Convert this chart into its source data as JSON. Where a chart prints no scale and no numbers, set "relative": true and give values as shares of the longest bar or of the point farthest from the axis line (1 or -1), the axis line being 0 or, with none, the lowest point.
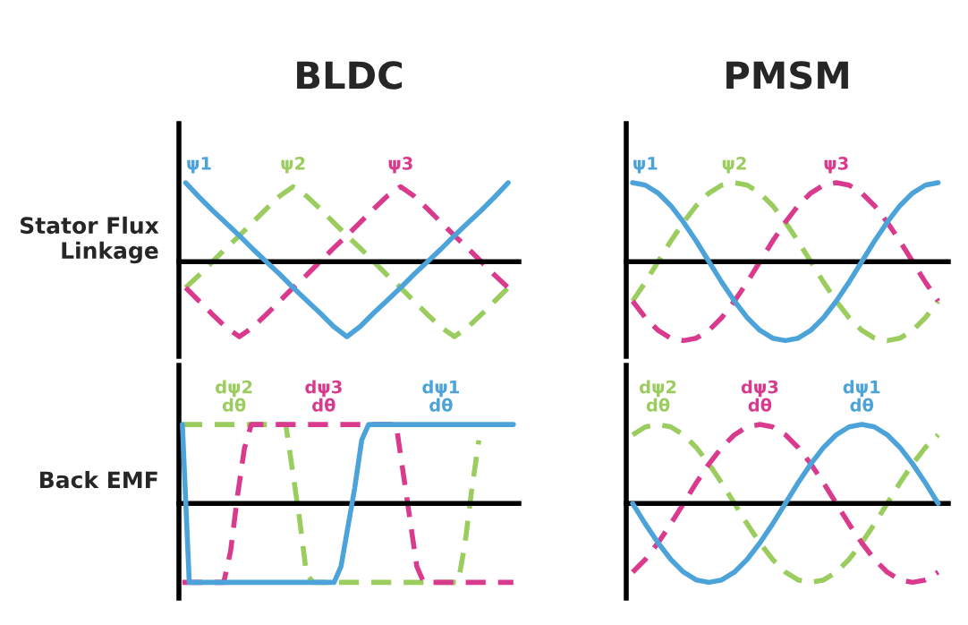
{
  "chart_data": [
    {
      "type": "line",
      "title": "BLDC",
      "ylabel": "Stator Flux\nLinkage",
      "relative": true,
      "categories": [
        null,
        null,
        null,
        null,
        null,
        null,
        null,
        null,
        null,
        null,
        null,
        null,
        null,
        null,
        null,
        null,
        null,
        null,
        null,
        null,
        null,
        null,
        null,
        null,
        null
      ],
      "series": [
        {
          "name": "ψ1",
          "color": "#4ba3d9",
          "line_style": "solid",
          "values": [
            1,
            0.82,
            0.65,
            0.49,
            0.33,
            0.16,
            0,
            -0.16,
            -0.33,
            -0.49,
            -0.65,
            -0.82,
            -0.95,
            -0.82,
            -0.65,
            -0.49,
            -0.33,
            -0.16,
            0,
            0.16,
            0.33,
            0.49,
            0.65,
            0.82,
            1
          ]
        },
        {
          "name": "ψ2",
          "color": "#9acd5e",
          "line_style": "dashed",
          "values": [
            -0.33,
            -0.17,
            0,
            0.17,
            0.33,
            0.5,
            0.67,
            0.83,
            0.95,
            0.83,
            0.67,
            0.5,
            0.33,
            0.17,
            0,
            -0.17,
            -0.33,
            -0.5,
            -0.67,
            -0.83,
            -0.95,
            -0.83,
            -0.67,
            -0.5,
            -0.33
          ]
        },
        {
          "name": "ψ3",
          "color": "#d93a8e",
          "line_style": "dashed",
          "values": [
            -0.33,
            -0.5,
            -0.67,
            -0.83,
            -0.95,
            -0.83,
            -0.67,
            -0.5,
            -0.33,
            -0.17,
            0,
            0.17,
            0.33,
            0.5,
            0.67,
            0.83,
            0.95,
            0.83,
            0.67,
            0.5,
            0.33,
            0.17,
            0,
            -0.17,
            -0.33
          ]
        }
      ]
    },
    {
      "type": "line",
      "title": "PMSM",
      "relative": true,
      "categories": [
        null,
        null,
        null,
        null,
        null,
        null,
        null,
        null,
        null,
        null,
        null,
        null,
        null,
        null,
        null,
        null,
        null,
        null,
        null,
        null,
        null,
        null,
        null,
        null,
        null
      ],
      "series": [
        {
          "name": "ψ1",
          "color": "#4ba3d9",
          "line_style": "solid",
          "values": [
            1,
            0.97,
            0.87,
            0.71,
            0.5,
            0.26,
            0,
            -0.26,
            -0.5,
            -0.71,
            -0.87,
            -0.97,
            -1,
            -0.97,
            -0.87,
            -0.71,
            -0.5,
            -0.26,
            0,
            0.26,
            0.5,
            0.71,
            0.87,
            0.97,
            1
          ]
        },
        {
          "name": "ψ2",
          "color": "#9acd5e",
          "line_style": "dashed",
          "values": [
            -0.5,
            -0.26,
            0,
            0.26,
            0.5,
            0.71,
            0.87,
            0.97,
            1,
            0.97,
            0.87,
            0.71,
            0.5,
            0.26,
            0,
            -0.26,
            -0.5,
            -0.71,
            -0.87,
            -0.97,
            -1,
            -0.97,
            -0.87,
            -0.71,
            -0.5
          ]
        },
        {
          "name": "ψ3",
          "color": "#d93a8e",
          "line_style": "dashed",
          "values": [
            -0.5,
            -0.71,
            -0.87,
            -0.97,
            -1,
            -0.97,
            -0.87,
            -0.71,
            -0.5,
            -0.26,
            0,
            0.26,
            0.5,
            0.71,
            0.87,
            0.97,
            1,
            0.97,
            0.87,
            0.71,
            0.5,
            0.26,
            0,
            -0.26,
            -0.5
          ]
        }
      ]
    },
    {
      "type": "line",
      "ylabel": "Back EMF",
      "relative": true,
      "categories": [
        null,
        null,
        null,
        null,
        null,
        null,
        null,
        null,
        null,
        null,
        null,
        null,
        null,
        null,
        null,
        null,
        null,
        null,
        null,
        null,
        null,
        null,
        null,
        null,
        null,
        null,
        null,
        null,
        null,
        null,
        null,
        null,
        null,
        null,
        null,
        null,
        null,
        null,
        null,
        null,
        null,
        null,
        null,
        null,
        null,
        null,
        null,
        null,
        null
      ],
      "series": [
        {
          "name": "dψ1\ndθ",
          "color": "#4ba3d9",
          "line_style": "solid",
          "values": [
            1,
            -1,
            -1,
            -1,
            -1,
            -1,
            -1,
            -1,
            -1,
            -1,
            -1,
            -1,
            -1,
            -1,
            -1,
            -1,
            -1,
            -1,
            -1,
            -1,
            -1,
            -1,
            -1,
            -0.8,
            -0.3,
            0.2,
            0.8,
            1,
            1,
            1,
            1,
            1,
            1,
            1,
            1,
            1,
            1,
            1,
            1,
            1,
            1,
            1,
            1,
            1,
            1,
            1,
            1,
            1,
            1
          ]
        },
        {
          "name": "dψ2\ndθ",
          "color": "#9acd5e",
          "line_style": "dashed",
          "values": [
            1,
            1,
            1,
            1,
            1,
            1,
            1,
            1,
            1,
            1,
            1,
            1,
            1,
            1,
            1,
            1,
            0.4,
            -0.2,
            -0.9,
            -1,
            -1,
            -1,
            -1,
            -1,
            -1,
            -1,
            -1,
            -1,
            -1,
            -1,
            -1,
            -1,
            -1,
            -1,
            -1,
            -1,
            -1,
            -1,
            -1,
            -1,
            -1,
            -0.5,
            0.2,
            0.8,
            null,
            null,
            null,
            null,
            null
          ]
        },
        {
          "name": "dψ3\ndθ",
          "color": "#d93a8e",
          "line_style": "dashed",
          "values": [
            -1,
            -1,
            -1,
            -1,
            -1,
            -1,
            -1,
            -0.6,
            0.1,
            0.7,
            1,
            1,
            1,
            1,
            1,
            1,
            1,
            1,
            1,
            1,
            1,
            1,
            1,
            1,
            1,
            1,
            1,
            1,
            1,
            1,
            1,
            1,
            0.4,
            -0.2,
            -0.8,
            -1,
            -1,
            -1,
            -1,
            -1,
            -1,
            -1,
            -1,
            -1,
            -1,
            -1,
            -1,
            -1,
            -1
          ]
        }
      ]
    },
    {
      "type": "line",
      "relative": true,
      "categories": [
        null,
        null,
        null,
        null,
        null,
        null,
        null,
        null,
        null,
        null,
        null,
        null,
        null,
        null,
        null,
        null,
        null,
        null,
        null,
        null,
        null,
        null,
        null,
        null,
        null
      ],
      "series": [
        {
          "name": "dψ1\ndθ",
          "color": "#4ba3d9",
          "line_style": "solid",
          "values": [
            0,
            -0.26,
            -0.5,
            -0.71,
            -0.87,
            -0.97,
            -1,
            -0.97,
            -0.87,
            -0.71,
            -0.5,
            -0.26,
            0,
            0.26,
            0.5,
            0.71,
            0.87,
            0.97,
            1,
            0.97,
            0.87,
            0.71,
            0.5,
            0.26,
            0
          ]
        },
        {
          "name": "dψ2\ndθ",
          "color": "#9acd5e",
          "line_style": "dashed",
          "values": [
            0.87,
            0.97,
            1,
            0.97,
            0.87,
            0.71,
            0.5,
            0.26,
            0,
            -0.26,
            -0.5,
            -0.71,
            -0.87,
            -0.97,
            -1,
            -0.97,
            -0.87,
            -0.71,
            -0.5,
            -0.26,
            0,
            0.26,
            0.5,
            0.71,
            0.87
          ]
        },
        {
          "name": "dψ3\ndθ",
          "color": "#d93a8e",
          "line_style": "dashed",
          "values": [
            -0.87,
            -0.71,
            -0.5,
            -0.26,
            0,
            0.26,
            0.5,
            0.71,
            0.87,
            0.97,
            1,
            0.97,
            0.87,
            0.71,
            0.5,
            0.26,
            0,
            -0.26,
            -0.5,
            -0.71,
            -0.87,
            -0.97,
            -1,
            -0.97,
            -0.87
          ]
        }
      ]
    }
  ]
}
